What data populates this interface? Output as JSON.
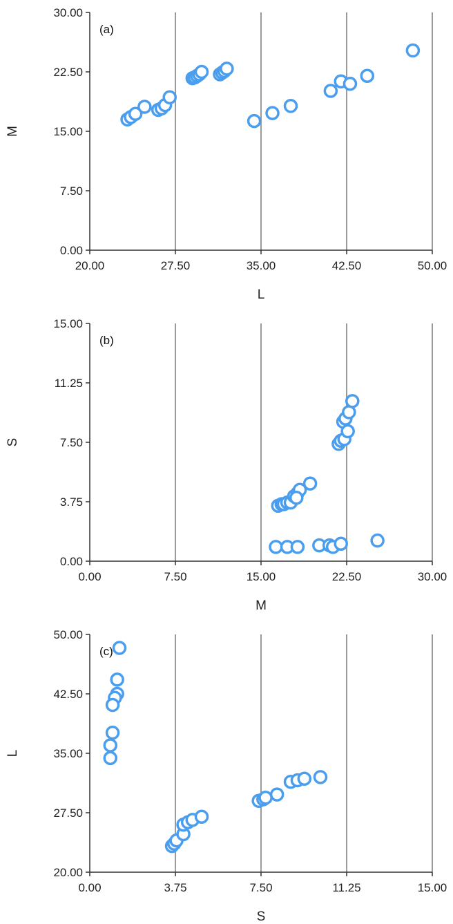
{
  "chart_data": [
    {
      "type": "scatter",
      "panel_label": "(a)",
      "xlabel": "L",
      "ylabel": "M",
      "xlim": [
        20,
        50
      ],
      "ylim": [
        0,
        30
      ],
      "x_ticks": [
        "20.00",
        "27.50",
        "35.00",
        "42.50",
        "50.00"
      ],
      "y_ticks": [
        "0.00",
        "7.50",
        "15.00",
        "22.50",
        "30.00"
      ],
      "grid": "vertical",
      "marker_color": "#4a9eed",
      "points": [
        [
          23.3,
          16.5
        ],
        [
          23.6,
          16.8
        ],
        [
          24.0,
          17.2
        ],
        [
          24.8,
          18.1
        ],
        [
          26.0,
          17.7
        ],
        [
          26.3,
          17.9
        ],
        [
          26.6,
          18.3
        ],
        [
          27.0,
          19.3
        ],
        [
          29.0,
          21.7
        ],
        [
          29.2,
          21.8
        ],
        [
          29.4,
          22.0
        ],
        [
          29.6,
          22.2
        ],
        [
          29.8,
          22.5
        ],
        [
          31.4,
          22.2
        ],
        [
          31.6,
          22.4
        ],
        [
          31.8,
          22.6
        ],
        [
          32.0,
          22.9
        ],
        [
          34.4,
          16.3
        ],
        [
          36.0,
          17.3
        ],
        [
          37.6,
          18.2
        ],
        [
          41.1,
          20.1
        ],
        [
          42.0,
          21.3
        ],
        [
          42.8,
          21.0
        ],
        [
          44.3,
          22.0
        ],
        [
          48.3,
          25.2
        ]
      ]
    },
    {
      "type": "scatter",
      "panel_label": "(b)",
      "xlabel": "M",
      "ylabel": "S",
      "xlim": [
        0,
        30
      ],
      "ylim": [
        0,
        15
      ],
      "x_ticks": [
        "0.00",
        "7.50",
        "15.00",
        "22.50",
        "30.00"
      ],
      "y_ticks": [
        "0.00",
        "3.75",
        "7.50",
        "11.25",
        "15.00"
      ],
      "grid": "vertical",
      "marker_color": "#4a9eed",
      "points": [
        [
          16.5,
          3.5
        ],
        [
          16.8,
          3.6
        ],
        [
          17.0,
          3.6
        ],
        [
          17.3,
          3.7
        ],
        [
          17.6,
          3.7
        ],
        [
          17.9,
          4.1
        ],
        [
          18.2,
          4.3
        ],
        [
          18.4,
          4.5
        ],
        [
          18.1,
          4.0
        ],
        [
          19.3,
          4.9
        ],
        [
          21.8,
          7.4
        ],
        [
          22.0,
          7.6
        ],
        [
          22.3,
          7.7
        ],
        [
          22.2,
          8.8
        ],
        [
          22.4,
          9.0
        ],
        [
          22.6,
          8.2
        ],
        [
          22.7,
          9.4
        ],
        [
          23.0,
          10.1
        ],
        [
          16.3,
          0.9
        ],
        [
          17.3,
          0.9
        ],
        [
          18.2,
          0.9
        ],
        [
          20.1,
          1.0
        ],
        [
          21.0,
          1.0
        ],
        [
          21.3,
          0.9
        ],
        [
          22.0,
          1.1
        ],
        [
          25.2,
          1.3
        ]
      ]
    },
    {
      "type": "scatter",
      "panel_label": "(c)",
      "xlabel": "S",
      "ylabel": "L",
      "xlim": [
        0,
        15
      ],
      "ylim": [
        20,
        50
      ],
      "x_ticks": [
        "0.00",
        "3.75",
        "7.50",
        "11.25",
        "15.00"
      ],
      "y_ticks": [
        "20.00",
        "27.50",
        "35.00",
        "42.50",
        "50.00"
      ],
      "grid": "vertical",
      "marker_color": "#4a9eed",
      "points": [
        [
          1.3,
          48.3
        ],
        [
          1.2,
          44.3
        ],
        [
          1.2,
          42.5
        ],
        [
          1.1,
          42.0
        ],
        [
          1.0,
          41.1
        ],
        [
          1.0,
          37.6
        ],
        [
          0.9,
          36.0
        ],
        [
          0.9,
          34.4
        ],
        [
          3.6,
          23.3
        ],
        [
          3.7,
          23.6
        ],
        [
          3.8,
          24.0
        ],
        [
          4.1,
          24.8
        ],
        [
          4.1,
          26.0
        ],
        [
          4.3,
          26.3
        ],
        [
          4.5,
          26.6
        ],
        [
          4.9,
          27.0
        ],
        [
          7.4,
          29.0
        ],
        [
          7.6,
          29.2
        ],
        [
          7.7,
          29.4
        ],
        [
          8.2,
          29.8
        ],
        [
          8.8,
          31.4
        ],
        [
          9.1,
          31.6
        ],
        [
          9.4,
          31.8
        ],
        [
          10.1,
          32.0
        ]
      ]
    }
  ]
}
